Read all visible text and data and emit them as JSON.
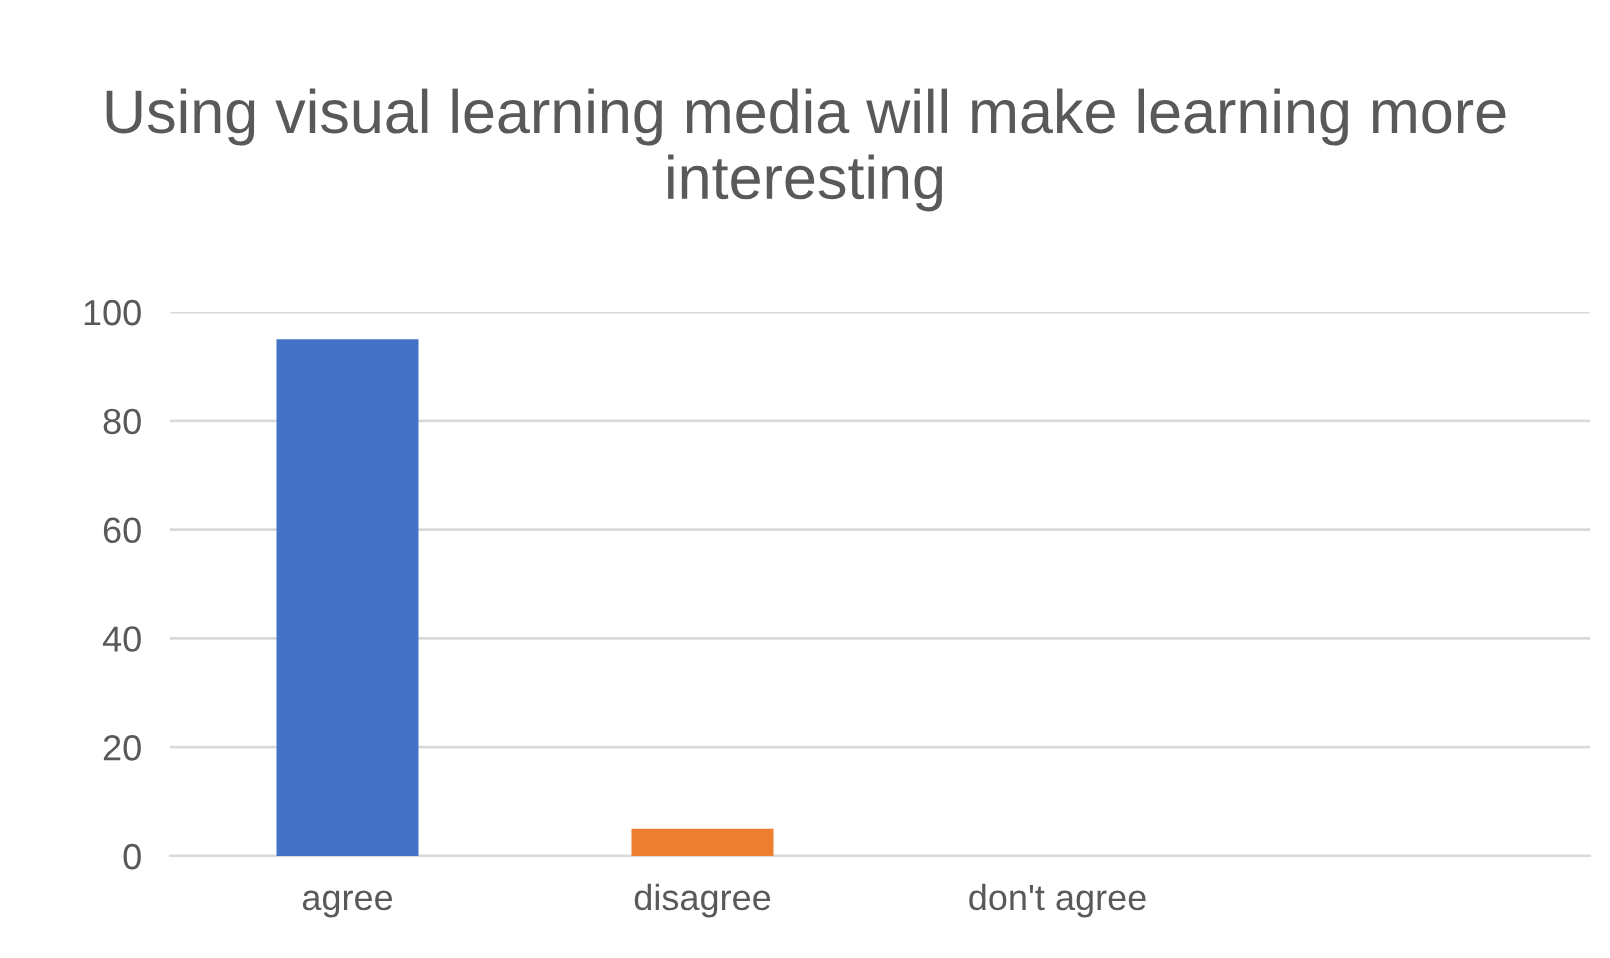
{
  "chart_data": {
    "type": "bar",
    "title": "Using visual learning media will make learning more interesting",
    "categories": [
      "agree",
      "disagree",
      "don't agree",
      null
    ],
    "values": [
      95,
      5,
      0,
      null
    ],
    "colors": [
      "#4472c4",
      "#ed7d31",
      "#a5a5a5",
      "#ffc000"
    ],
    "ylim": [
      0,
      100
    ],
    "yticks": [
      0,
      20,
      40,
      60,
      80,
      100
    ],
    "grid": "y",
    "legend": false
  }
}
